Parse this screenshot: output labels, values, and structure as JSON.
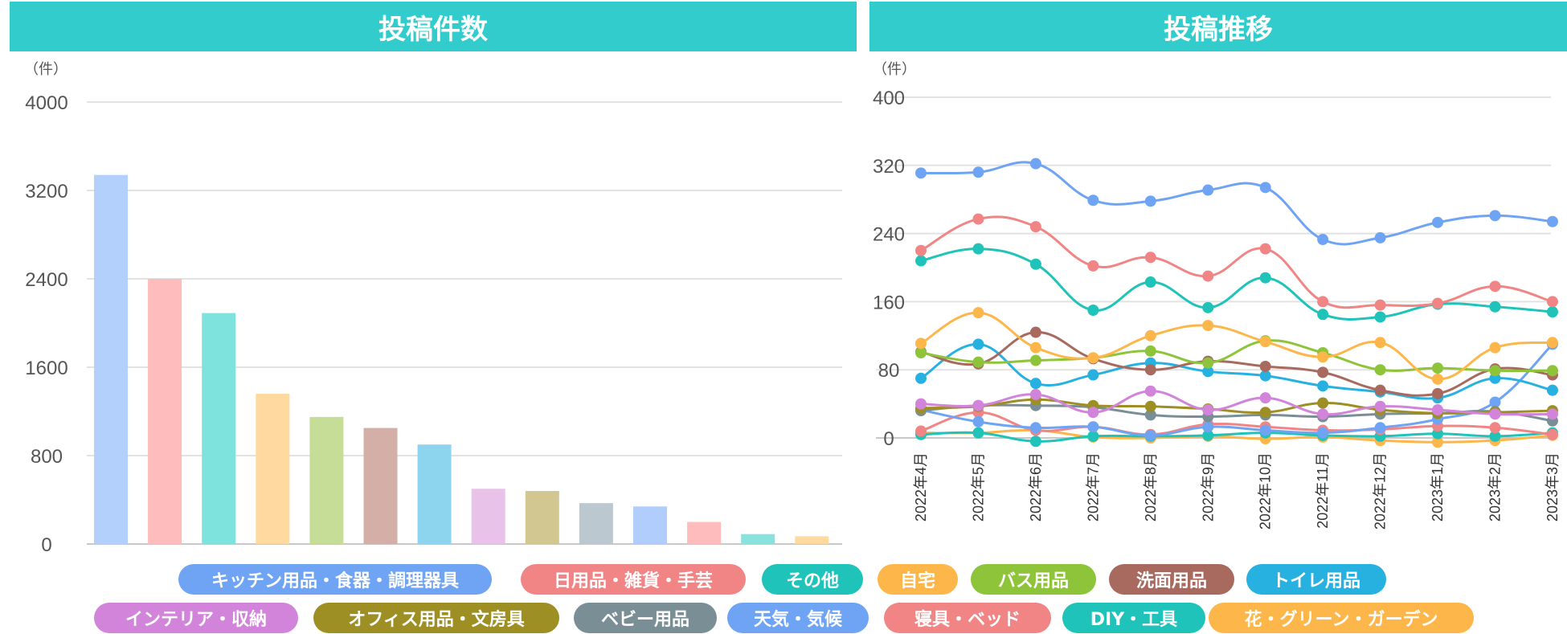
{
  "headers": {
    "left": "投稿件数",
    "right": "投稿推移"
  },
  "chart_data": [
    {
      "type": "bar",
      "title": "投稿件数",
      "ylabel": "（件）",
      "ylim": [
        0,
        4000
      ],
      "yticks": [
        "0",
        "800",
        "1600",
        "2400",
        "3200",
        "4000"
      ],
      "categories": [
        "キッチン用品・食器・調理器具",
        "日用品・雑貨・手芸",
        "その他",
        "自宅",
        "バス用品",
        "洗面用品",
        "トイレ用品",
        "インテリア・収納",
        "オフィス用品・文房具",
        "ベビー用品",
        "天気・気候",
        "寝具・ベッド",
        "DIY・工具",
        "花・グリーン・ガーデン"
      ],
      "values": [
        3340,
        2400,
        2090,
        1360,
        1150,
        1050,
        900,
        500,
        480,
        370,
        340,
        200,
        90,
        70
      ],
      "colors": [
        "#b3cffc",
        "#ffbcbc",
        "#7ee3dc",
        "#ffd9a0",
        "#c5dd97",
        "#d3afa7",
        "#8dd4ee",
        "#e8c2e8",
        "#d2c691",
        "#bcc8cf",
        "#b0cdfb",
        "#ffbcbc",
        "#8ae2dc",
        "#ffd9a0"
      ]
    },
    {
      "type": "line",
      "title": "投稿推移",
      "ylabel": "（件）",
      "ylim": [
        0,
        400
      ],
      "yticks": [
        "0",
        "80",
        "160",
        "240",
        "320",
        "400"
      ],
      "x": [
        "2022年4月",
        "2022年5月",
        "2022年6月",
        "2022年7月",
        "2022年8月",
        "2022年9月",
        "2022年10月",
        "2022年11月",
        "2022年12月",
        "2023年1月",
        "2023年2月",
        "2023年3月"
      ],
      "series": [
        {
          "name": "キッチン用品・食器・調理器具",
          "color": "#6fa4f4",
          "values": [
            311,
            312,
            322,
            279,
            278,
            291,
            294,
            233,
            235,
            253,
            261,
            254
          ]
        },
        {
          "name": "日用品・雑貨・手芸",
          "color": "#f18585",
          "values": [
            220,
            257,
            248,
            202,
            212,
            190,
            222,
            160,
            156,
            158,
            178,
            160
          ]
        },
        {
          "name": "その他",
          "color": "#1fc3b9",
          "values": [
            208,
            222,
            204,
            150,
            183,
            153,
            188,
            145,
            142,
            157,
            154,
            148
          ]
        },
        {
          "name": "自宅",
          "color": "#fdb64a",
          "values": [
            111,
            147,
            106,
            94,
            120,
            132,
            113,
            95,
            112,
            69,
            106,
            112
          ]
        },
        {
          "name": "バス用品",
          "color": "#8ec43a",
          "values": [
            100,
            89,
            91,
            94,
            102,
            88,
            114,
            100,
            80,
            82,
            79,
            79
          ]
        },
        {
          "name": "洗面用品",
          "color": "#a86a5e",
          "values": [
            101,
            87,
            124,
            93,
            80,
            90,
            84,
            77,
            56,
            52,
            81,
            74
          ]
        },
        {
          "name": "トイレ用品",
          "color": "#27b1e1",
          "values": [
            70,
            110,
            64,
            74,
            88,
            78,
            73,
            61,
            54,
            47,
            70,
            56
          ]
        },
        {
          "name": "インテリア・収納",
          "color": "#d184d9",
          "values": [
            40,
            38,
            51,
            30,
            55,
            33,
            47,
            28,
            37,
            33,
            28,
            28
          ]
        },
        {
          "name": "オフィス用品・文房具",
          "color": "#9e8f25",
          "values": [
            35,
            37,
            45,
            38,
            37,
            34,
            30,
            41,
            33,
            29,
            30,
            32
          ]
        },
        {
          "name": "ベビー用品",
          "color": "#7a8e96",
          "values": [
            32,
            38,
            38,
            36,
            27,
            25,
            27,
            25,
            28,
            29,
            31,
            20
          ]
        },
        {
          "name": "天気・気候",
          "color": "#6fa4f4",
          "values": [
            33,
            19,
            12,
            13,
            3,
            13,
            9,
            6,
            12,
            22,
            42,
            110
          ]
        },
        {
          "name": "寝具・ベッド",
          "color": "#f18585",
          "values": [
            8,
            30,
            9,
            13,
            4,
            16,
            13,
            9,
            10,
            14,
            12,
            4
          ]
        },
        {
          "name": "DIY・工具",
          "color": "#1fc3b9",
          "values": [
            4,
            6,
            -4,
            2,
            2,
            3,
            6,
            3,
            2,
            5,
            2,
            6
          ]
        },
        {
          "name": "花・グリーン・ガーデン",
          "color": "#fdb64a",
          "values": [
            6,
            6,
            9,
            1,
            0,
            2,
            -1,
            1,
            -3,
            -5,
            -3,
            3
          ]
        }
      ]
    }
  ],
  "legend": [
    {
      "label": "キッチン用品・食器・調理器具",
      "color": "#6fa4f4"
    },
    {
      "label": "日用品・雑貨・手芸",
      "color": "#f18585"
    },
    {
      "label": "その他",
      "color": "#1fc3b9"
    },
    {
      "label": "自宅",
      "color": "#fdb64a"
    },
    {
      "label": "バス用品",
      "color": "#8ec43a"
    },
    {
      "label": "洗面用品",
      "color": "#a86a5e"
    },
    {
      "label": "トイレ用品",
      "color": "#27b1e1"
    },
    {
      "label": "インテリア・収納",
      "color": "#d184d9"
    },
    {
      "label": "オフィス用品・文房具",
      "color": "#9e8f25"
    },
    {
      "label": "ベビー用品",
      "color": "#7a8e96"
    },
    {
      "label": "天気・気候",
      "color": "#6fa4f4"
    },
    {
      "label": "寝具・ベッド",
      "color": "#f18585"
    },
    {
      "label": "DIY・工具",
      "color": "#1fc3b9"
    },
    {
      "label": "花・グリーン・ガーデン",
      "color": "#fdb64a"
    }
  ]
}
